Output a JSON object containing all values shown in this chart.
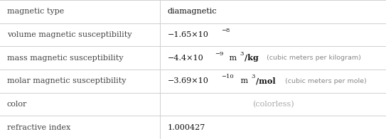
{
  "rows": [
    {
      "label": "magnetic type",
      "value": "diamagnetic",
      "type": "simple"
    },
    {
      "label": "volume magnetic susceptibility",
      "value": "−1.65×10",
      "exp": "−8",
      "type": "exp"
    },
    {
      "label": "mass magnetic susceptibility",
      "base": "−4.4×10",
      "exp": "−9",
      "unit_base": " m",
      "unit_exp": "3",
      "unit_rest": "/kg",
      "note": " (cubic meters per kilogram)",
      "type": "unit_exp"
    },
    {
      "label": "molar magnetic susceptibility",
      "base": "−3.69×10",
      "exp": "−10",
      "unit_base": " m",
      "unit_exp": "3",
      "unit_rest": "/mol",
      "note": " (cubic meters per mole)",
      "type": "unit_exp"
    },
    {
      "label": "color",
      "value": "(colorless)",
      "type": "gray"
    },
    {
      "label": "refractive index",
      "value": "1.000427",
      "type": "simple"
    }
  ],
  "col_split": 0.415,
  "bg_color": "#ffffff",
  "border_color": "#d0d0d0",
  "label_color": "#444444",
  "value_color": "#111111",
  "gray_color": "#aaaaaa",
  "note_color": "#888888",
  "font_size": 8.0,
  "super_font_size": 6.0,
  "note_font_size": 6.8
}
